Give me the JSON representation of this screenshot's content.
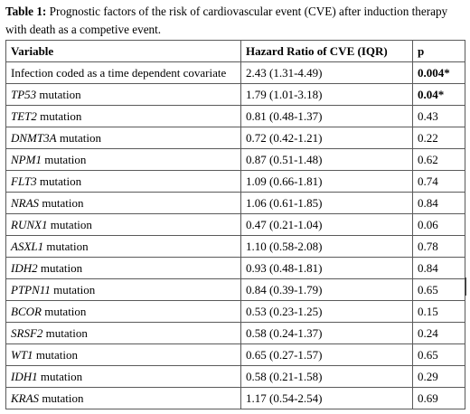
{
  "caption": {
    "label": "Table 1:",
    "text": "Prognostic factors of the risk of cardiovascular event (CVE) after induction therapy with death as a competive event."
  },
  "table": {
    "headers": [
      "Variable",
      "Hazard Ratio of CVE (IQR)",
      "p"
    ],
    "rows": [
      {
        "label": "Infection coded as a time dependent covariate",
        "gene": "",
        "suffix": "",
        "hr": "2.43 (1.31-4.49)",
        "p": "0.004*",
        "significant": true
      },
      {
        "label": "",
        "gene": "TP53",
        "suffix": " mutation",
        "hr": "1.79 (1.01-3.18)",
        "p": "0.04*",
        "significant": true
      },
      {
        "label": "",
        "gene": "TET2",
        "suffix": " mutation",
        "hr": "0.81 (0.48-1.37)",
        "p": "0.43",
        "significant": false
      },
      {
        "label": "",
        "gene": "DNMT3A",
        "suffix": " mutation",
        "hr": "0.72 (0.42-1.21)",
        "p": "0.22",
        "significant": false
      },
      {
        "label": "",
        "gene": "NPM1",
        "suffix": " mutation",
        "hr": "0.87 (0.51-1.48)",
        "p": "0.62",
        "significant": false
      },
      {
        "label": "",
        "gene": "FLT3",
        "suffix": " mutation",
        "hr": "1.09 (0.66-1.81)",
        "p": "0.74",
        "significant": false
      },
      {
        "label": "",
        "gene": "NRAS",
        "suffix": " mutation",
        "hr": "1.06 (0.61-1.85)",
        "p": "0.84",
        "significant": false
      },
      {
        "label": "",
        "gene": "RUNX1",
        "suffix": " mutation",
        "hr": "0.47 (0.21-1.04)",
        "p": "0.06",
        "significant": false
      },
      {
        "label": "",
        "gene": "ASXL1",
        "suffix": " mutation",
        "hr": "1.10 (0.58-2.08)",
        "p": "0.78",
        "significant": false
      },
      {
        "label": "",
        "gene": "IDH2",
        "suffix": " mutation",
        "hr": "0.93 (0.48-1.81)",
        "p": "0.84",
        "significant": false
      },
      {
        "label": "",
        "gene": "PTPN11",
        "suffix": " mutation",
        "hr": "0.84 (0.39-1.79)",
        "p": "0.65",
        "significant": false
      },
      {
        "label": "",
        "gene": "BCOR",
        "suffix": " mutation",
        "hr": "0.53 (0.23-1.25)",
        "p": "0.15",
        "significant": false
      },
      {
        "label": "",
        "gene": "SRSF2",
        "suffix": " mutation",
        "hr": "0.58 (0.24-1.37)",
        "p": "0.24",
        "significant": false
      },
      {
        "label": "",
        "gene": "WT1",
        "suffix": " mutation",
        "hr": "0.65 (0.27-1.57)",
        "p": "0.65",
        "significant": false
      },
      {
        "label": "",
        "gene": "IDH1",
        "suffix": " mutation",
        "hr": "0.58 (0.21-1.58)",
        "p": "0.29",
        "significant": false
      },
      {
        "label": "",
        "gene": "KRAS",
        "suffix": " mutation",
        "hr": "1.17 (0.54-2.54)",
        "p": "0.69",
        "significant": false
      }
    ]
  }
}
